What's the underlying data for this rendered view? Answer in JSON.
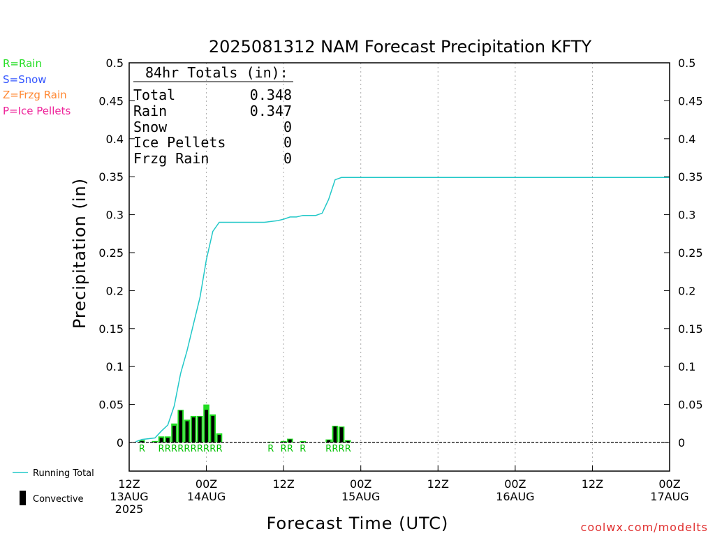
{
  "header": {
    "title": "2025081312 NAM Forecast Precipitation KFTY"
  },
  "key": [
    {
      "label": "R=Rain",
      "color": "#22dd22"
    },
    {
      "label": "S=Snow",
      "color": "#3355ff"
    },
    {
      "label": "Z=Frzg Rain",
      "color": "#ff8833"
    },
    {
      "label": "P=Ice Pellets",
      "color": "#ee2299"
    }
  ],
  "totals": {
    "heading": "84hr Totals (in):",
    "rows": [
      {
        "label": "Total",
        "value": "0.348"
      },
      {
        "label": "Rain",
        "value": "0.347"
      },
      {
        "label": "Snow",
        "value": "0"
      },
      {
        "label": "Ice Pellets",
        "value": "0"
      },
      {
        "label": "Frzg Rain",
        "value": "0"
      }
    ]
  },
  "legend": {
    "running_total": "Running Total",
    "convective": "Convective"
  },
  "credit": "coolwx.com/modelts",
  "colors": {
    "running_total": "#22c8c8",
    "rain_bar": "#22dd22",
    "convective_bar": "#000000",
    "grid": "#aaaaaa"
  },
  "chart_data": {
    "type": "bar",
    "title": "2025081312 NAM Forecast Precipitation KFTY",
    "xlabel": "Forecast Time (UTC)",
    "ylabel": "Precipitation (in)",
    "ylim": [
      0,
      0.5
    ],
    "xlim_hours": [
      0,
      84
    ],
    "y_ticks": [
      "0",
      "0.05",
      "0.1",
      "0.15",
      "0.2",
      "0.25",
      "0.3",
      "0.35",
      "0.4",
      "0.45",
      "0.5"
    ],
    "x_ticks": [
      {
        "hour": 0,
        "lines": [
          "12Z",
          "13AUG",
          "2025"
        ]
      },
      {
        "hour": 12,
        "lines": [
          "00Z",
          "14AUG"
        ]
      },
      {
        "hour": 24,
        "lines": [
          "12Z"
        ]
      },
      {
        "hour": 36,
        "lines": [
          "00Z",
          "15AUG"
        ]
      },
      {
        "hour": 48,
        "lines": [
          "12Z"
        ]
      },
      {
        "hour": 60,
        "lines": [
          "00Z",
          "16AUG"
        ]
      },
      {
        "hour": 72,
        "lines": [
          "12Z"
        ]
      },
      {
        "hour": 84,
        "lines": [
          "00Z",
          "17AUG"
        ]
      }
    ],
    "grid": "vertical dotted at each 12Z/00Z",
    "bars": [
      {
        "hour": 2,
        "total": 0.003,
        "convective": 0.002,
        "ptype": "R"
      },
      {
        "hour": 4,
        "total": 0.002,
        "convective": 0.001,
        "ptype": ""
      },
      {
        "hour": 5,
        "total": 0.008,
        "convective": 0.006,
        "ptype": "R"
      },
      {
        "hour": 6,
        "total": 0.008,
        "convective": 0.006,
        "ptype": "R"
      },
      {
        "hour": 7,
        "total": 0.025,
        "convective": 0.022,
        "ptype": "R"
      },
      {
        "hour": 8,
        "total": 0.043,
        "convective": 0.042,
        "ptype": "R"
      },
      {
        "hour": 9,
        "total": 0.03,
        "convective": 0.028,
        "ptype": "R"
      },
      {
        "hour": 10,
        "total": 0.035,
        "convective": 0.033,
        "ptype": "R"
      },
      {
        "hour": 11,
        "total": 0.035,
        "convective": 0.034,
        "ptype": "R"
      },
      {
        "hour": 12,
        "total": 0.05,
        "convective": 0.043,
        "ptype": "R"
      },
      {
        "hour": 13,
        "total": 0.037,
        "convective": 0.035,
        "ptype": "R"
      },
      {
        "hour": 14,
        "total": 0.012,
        "convective": 0.01,
        "ptype": "R"
      },
      {
        "hour": 22,
        "total": 0.001,
        "convective": 0.0,
        "ptype": "R"
      },
      {
        "hour": 24,
        "total": 0.002,
        "convective": 0.001,
        "ptype": "R"
      },
      {
        "hour": 25,
        "total": 0.005,
        "convective": 0.004,
        "ptype": "R"
      },
      {
        "hour": 27,
        "total": 0.002,
        "convective": 0.001,
        "ptype": "R"
      },
      {
        "hour": 31,
        "total": 0.004,
        "convective": 0.003,
        "ptype": "R"
      },
      {
        "hour": 32,
        "total": 0.022,
        "convective": 0.021,
        "ptype": "R"
      },
      {
        "hour": 33,
        "total": 0.021,
        "convective": 0.02,
        "ptype": "R"
      },
      {
        "hour": 34,
        "total": 0.003,
        "convective": 0.002,
        "ptype": "R"
      }
    ],
    "running_total": {
      "hours": [
        1,
        2,
        3,
        4,
        5,
        6,
        7,
        8,
        9,
        10,
        11,
        12,
        13,
        14,
        15,
        16,
        17,
        18,
        19,
        20,
        21,
        22,
        23,
        24,
        25,
        26,
        27,
        28,
        29,
        30,
        31,
        32,
        33,
        34,
        35,
        84
      ],
      "values": [
        0.001,
        0.004,
        0.005,
        0.006,
        0.015,
        0.023,
        0.048,
        0.091,
        0.121,
        0.156,
        0.191,
        0.241,
        0.278,
        0.29,
        0.29,
        0.29,
        0.29,
        0.29,
        0.29,
        0.29,
        0.29,
        0.291,
        0.292,
        0.294,
        0.297,
        0.297,
        0.299,
        0.299,
        0.299,
        0.302,
        0.32,
        0.346,
        0.349,
        0.349,
        0.349,
        0.349
      ]
    }
  }
}
